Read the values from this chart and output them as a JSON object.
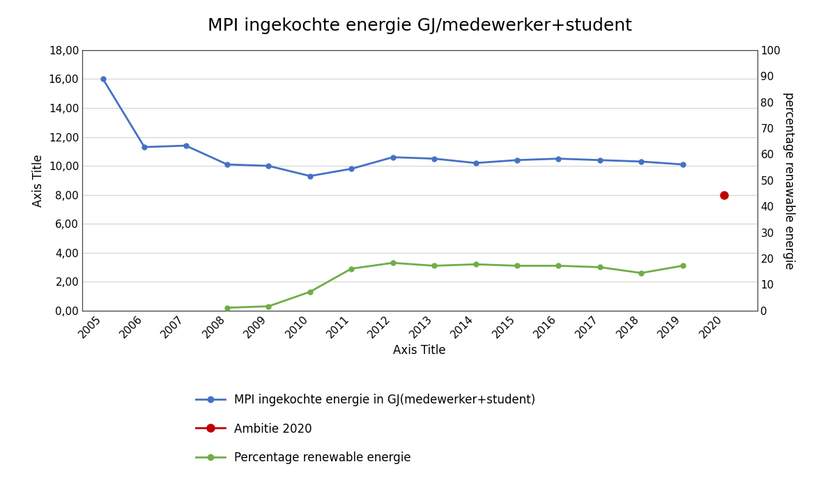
{
  "title": "MPI ingekochte energie GJ/medewerker+student",
  "xlabel": "Axis Title",
  "ylabel_left": "Axis Title",
  "ylabel_right": "percentage renawable energie",
  "blue_line": {
    "label": "MPI ingekochte energie in GJ(medewerker+student)",
    "color": "#4472C4",
    "years": [
      2005,
      2006,
      2007,
      2008,
      2009,
      2010,
      2011,
      2012,
      2013,
      2014,
      2015,
      2016,
      2017,
      2018,
      2019
    ],
    "values": [
      16.0,
      11.3,
      11.4,
      10.1,
      10.0,
      9.3,
      9.8,
      10.6,
      10.5,
      10.2,
      10.4,
      10.5,
      10.4,
      10.3,
      10.1
    ]
  },
  "red_point": {
    "label": "Ambitie 2020",
    "color": "#C00000",
    "year": 2020,
    "value": 8.0
  },
  "green_line": {
    "label": "Percentage renewable energie",
    "color": "#70AD47",
    "years": [
      2008,
      2009,
      2010,
      2011,
      2012,
      2013,
      2014,
      2015,
      2016,
      2017,
      2018,
      2019
    ],
    "values": [
      0.2,
      0.3,
      1.3,
      2.9,
      3.3,
      3.1,
      3.2,
      3.1,
      3.1,
      3.0,
      2.6,
      3.1
    ]
  },
  "ylim_left": [
    0,
    18
  ],
  "yticks_left": [
    0.0,
    2.0,
    4.0,
    6.0,
    8.0,
    10.0,
    12.0,
    14.0,
    16.0,
    18.0
  ],
  "yticks_right": [
    0,
    10,
    20,
    30,
    40,
    50,
    60,
    70,
    80,
    90,
    100
  ],
  "background_color": "#ffffff",
  "plot_bg_color": "#ffffff",
  "grid_color": "#d9d9d9",
  "title_fontsize": 18,
  "axis_label_fontsize": 12,
  "tick_fontsize": 11
}
